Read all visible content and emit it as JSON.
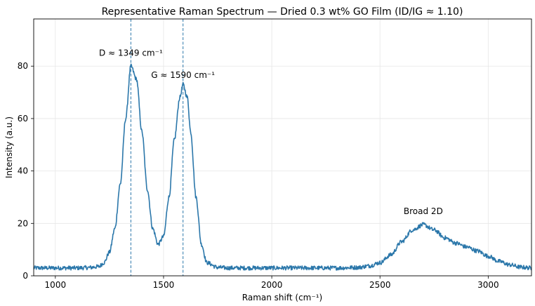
{
  "chart_data": {
    "type": "line",
    "title": "Representative Raman Spectrum — Dried 0.3 wt% GO Film (ID/IG ≈ 1.10)",
    "xlabel": "Raman shift (cm⁻¹)",
    "ylabel": "Intensity (a.u.)",
    "xlim": [
      900,
      3200
    ],
    "ylim": [
      0,
      98
    ],
    "xticks": [
      1000,
      1500,
      2000,
      2500,
      3000
    ],
    "yticks": [
      0,
      20,
      40,
      60,
      80
    ],
    "grid": true,
    "line_color": "#2b77aa",
    "reference_lines": [
      {
        "x": 1349,
        "style": "dashed",
        "color": "#2b77aa"
      },
      {
        "x": 1590,
        "style": "dashed",
        "color": "#2b77aa"
      }
    ],
    "annotations": [
      {
        "text": "D ≈ 1349 cm⁻¹",
        "x": 1349,
        "y": 84
      },
      {
        "text": "G ≈ 1590 cm⁻¹",
        "x": 1590,
        "y": 75.5
      },
      {
        "text": "Broad 2D",
        "x": 2700,
        "y": 23.5
      }
    ],
    "series": [
      {
        "x": [
          900,
          950,
          1000,
          1050,
          1100,
          1150,
          1200,
          1225,
          1250,
          1275,
          1300,
          1325,
          1349,
          1375,
          1400,
          1425,
          1450,
          1475,
          1500,
          1525,
          1550,
          1575,
          1590,
          1610,
          1625,
          1650,
          1675,
          1700,
          1750,
          1800,
          1900,
          2000,
          2100,
          2200,
          2300,
          2400,
          2450,
          2500,
          2550,
          2600,
          2650,
          2700,
          2750,
          2800,
          2850,
          2900,
          2950,
          3000,
          3050,
          3100,
          3150,
          3200
        ],
        "values": [
          3.0,
          3.0,
          3.0,
          3.0,
          3.0,
          3.1,
          3.5,
          5.0,
          9.0,
          18.0,
          35.0,
          60.0,
          80.0,
          75.0,
          55.0,
          33.0,
          18.0,
          12.0,
          15.0,
          30.0,
          52.0,
          68.0,
          73.0,
          68.0,
          55.0,
          30.0,
          12.0,
          5.0,
          3.2,
          3.0,
          3.0,
          3.0,
          3.0,
          3.0,
          3.0,
          3.2,
          3.8,
          5.0,
          8.0,
          13.0,
          17.5,
          19.5,
          17.5,
          14.5,
          12.5,
          11.0,
          9.5,
          7.5,
          5.5,
          4.2,
          3.3,
          3.0
        ]
      }
    ]
  }
}
